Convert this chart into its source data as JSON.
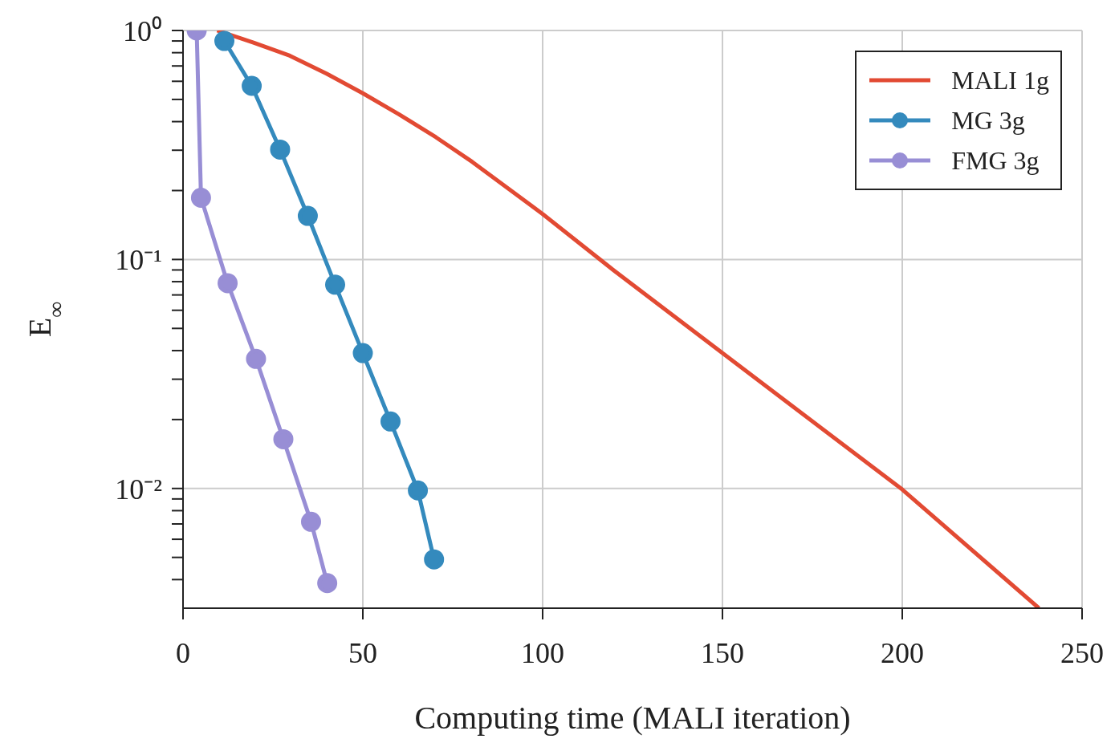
{
  "chart_data": {
    "type": "line",
    "xlabel": "Computing time (MALI iteration)",
    "ylabel": "E$_{∞}$",
    "xlim": [
      0,
      250
    ],
    "xticks": [
      0,
      50,
      100,
      150,
      200,
      250
    ],
    "ylim": [
      0.003,
      1
    ],
    "log": "y",
    "yticks": [
      {
        "value": 0.004,
        "label": null
      },
      {
        "value": 0.005,
        "label": null
      },
      {
        "value": 0.006,
        "label": null
      },
      {
        "value": 0.007,
        "label": null
      },
      {
        "value": 0.008,
        "label": null
      },
      {
        "value": 0.009,
        "label": null
      },
      {
        "value": 0.01,
        "label": "10⁻²"
      },
      {
        "value": 0.02,
        "label": null
      },
      {
        "value": 0.03,
        "label": null
      },
      {
        "value": 0.04,
        "label": null
      },
      {
        "value": 0.05,
        "label": null
      },
      {
        "value": 0.06,
        "label": null
      },
      {
        "value": 0.07,
        "label": null
      },
      {
        "value": 0.08,
        "label": null
      },
      {
        "value": 0.09,
        "label": null
      },
      {
        "value": 0.1,
        "label": "10⁻¹"
      },
      {
        "value": 0.2,
        "label": null
      },
      {
        "value": 0.3,
        "label": null
      },
      {
        "value": 0.4,
        "label": null
      },
      {
        "value": 0.5,
        "label": null
      },
      {
        "value": 0.6,
        "label": null
      },
      {
        "value": 0.7,
        "label": null
      },
      {
        "value": 0.8,
        "label": null
      },
      {
        "value": 0.9,
        "label": null
      },
      {
        "value": 1,
        "label": "10⁰"
      }
    ],
    "grid": true,
    "legend": "top right",
    "series": [
      {
        "name": "MALI 1g",
        "color": "#e24a33",
        "marker": "none",
        "x": [
          9.5,
          19.6,
          29.7,
          39.9,
          50,
          60.1,
          70.3,
          80.4,
          100,
          120,
          150,
          200,
          238
        ],
        "values": [
          1,
          0.885,
          0.776,
          0.648,
          0.532,
          0.43,
          0.342,
          0.267,
          0.158,
          0.089,
          0.039,
          0.0099,
          0.003
        ]
      },
      {
        "name": "MG 3g",
        "color": "#348abd",
        "marker": "circle",
        "x": [
          11.5,
          19.1,
          27,
          34.7,
          42.3,
          50,
          57.7,
          65.3,
          69.8
        ],
        "values": [
          0.9,
          0.573,
          0.302,
          0.155,
          0.0776,
          0.039,
          0.0196,
          0.0098,
          0.0049
        ]
      },
      {
        "name": "FMG 3g",
        "color": "#988ed5",
        "marker": "circle",
        "x": [
          3.8,
          5,
          12.4,
          20.3,
          27.9,
          35.6,
          40.1
        ],
        "values": [
          1,
          0.186,
          0.0788,
          0.0368,
          0.0164,
          0.00715,
          0.00386
        ]
      }
    ]
  }
}
